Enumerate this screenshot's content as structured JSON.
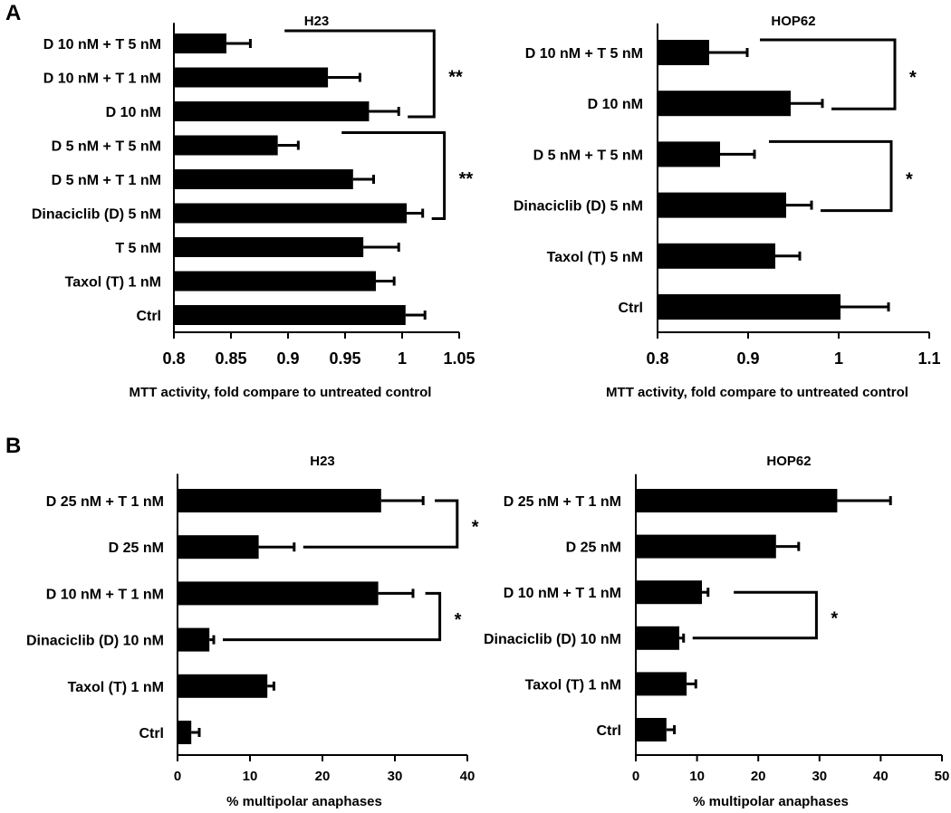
{
  "panels": [
    {
      "label": "A"
    },
    {
      "label": "B"
    }
  ],
  "colors": {
    "bar": "#000000",
    "axis": "#000000",
    "background": "#ffffff"
  },
  "chart_data": [
    {
      "type": "bar",
      "orientation": "horizontal",
      "panel": "A",
      "title": "H23",
      "categories": [
        "D 10 nM + T 5 nM",
        "D 10 nM + T 1 nM",
        "D 10 nM",
        "D 5 nM + T 5 nM",
        "D 5 nM + T 1 nM",
        "Dinaciclib (D) 5 nM",
        "T 5 nM",
        "Taxol (T) 1 nM",
        "Ctrl"
      ],
      "values": [
        0.846,
        0.935,
        0.971,
        0.891,
        0.957,
        1.004,
        0.966,
        0.977,
        1.003
      ],
      "errors": [
        0.021,
        0.028,
        0.026,
        0.018,
        0.018,
        0.014,
        0.031,
        0.016,
        0.017
      ],
      "xlim": [
        0.8,
        1.05
      ],
      "xticks": [
        0.8,
        0.85,
        0.9,
        0.95,
        1,
        1.05
      ],
      "xtick_labels": [
        "0.8",
        "0.85",
        "0.9",
        "0.95",
        "1",
        "1.05"
      ],
      "xlabel": "MTT activity, fold compare to untreated control",
      "significance": [
        {
          "bars": [
            0,
            2
          ],
          "label": "**",
          "level": 1.028,
          "start": 0.897
        },
        {
          "bars": [
            3,
            5
          ],
          "label": "**",
          "level": 1.037,
          "start": 0.947
        }
      ]
    },
    {
      "type": "bar",
      "orientation": "horizontal",
      "panel": "A",
      "title": "HOP62",
      "categories": [
        "D 10 nM + T 5 nM",
        "D 10 nM",
        "D 5 nM + T 5 nM",
        "Dinaciclib (D) 5 nM",
        "Taxol (T) 5 nM",
        "Ctrl"
      ],
      "values": [
        0.857,
        0.947,
        0.869,
        0.942,
        0.93,
        1.002
      ],
      "errors": [
        0.042,
        0.035,
        0.038,
        0.028,
        0.027,
        0.053
      ],
      "xlim": [
        0.8,
        1.1
      ],
      "xticks": [
        0.8,
        0.9,
        1,
        1.1
      ],
      "xtick_labels": [
        "0.8",
        "0.9",
        "1",
        "1.1"
      ],
      "xlabel": "MTT activity, fold compare to untreated control",
      "significance": [
        {
          "bars": [
            0,
            1
          ],
          "label": "*",
          "level": 1.062,
          "start": 0.913
        },
        {
          "bars": [
            2,
            3
          ],
          "label": "*",
          "level": 1.058,
          "start": 0.923
        }
      ]
    },
    {
      "type": "bar",
      "orientation": "horizontal",
      "panel": "B",
      "title": "H23",
      "categories": [
        "D 25 nM + T 1 nM",
        "D 25 nM",
        "D 10 nM + T 1 nM",
        "Dinaciclib (D) 10 nM",
        "Taxol (T) 1 nM",
        "Ctrl"
      ],
      "values": [
        28.1,
        11.2,
        27.7,
        4.4,
        12.4,
        1.9
      ],
      "errors": [
        5.8,
        4.9,
        4.8,
        0.6,
        0.9,
        1.1
      ],
      "xlim": [
        0,
        40
      ],
      "xticks": [
        0,
        10,
        20,
        30,
        40
      ],
      "xtick_labels": [
        "0",
        "10",
        "20",
        "30",
        "40"
      ],
      "xlabel": "% multipolar anaphases",
      "significance": [
        {
          "bars": [
            0,
            1
          ],
          "label": "*",
          "level": 38.6,
          "start": 35.5
        },
        {
          "bars": [
            2,
            3
          ],
          "label": "*",
          "level": 36.2,
          "start": 34.2
        }
      ]
    },
    {
      "type": "bar",
      "orientation": "horizontal",
      "panel": "B",
      "title": "HOP62",
      "categories": [
        "D 25 nM + T 1 nM",
        "D 25 nM",
        "D 10 nM + T 1 nM",
        "Dinaciclib (D) 10 nM",
        "Taxol (T) 1 nM",
        "Ctrl"
      ],
      "values": [
        32.9,
        22.9,
        10.8,
        7.1,
        8.3,
        5.0
      ],
      "errors": [
        8.7,
        3.7,
        1.0,
        0.7,
        1.5,
        1.3
      ],
      "xlim": [
        0,
        50
      ],
      "xticks": [
        0,
        10,
        20,
        30,
        40,
        50
      ],
      "xtick_labels": [
        "0",
        "10",
        "20",
        "30",
        "40",
        "50"
      ],
      "xlabel": "% multipolar anaphases",
      "significance": [
        {
          "bars": [
            2,
            3
          ],
          "label": "*",
          "level": 29.5,
          "start": 16.0
        }
      ]
    }
  ]
}
